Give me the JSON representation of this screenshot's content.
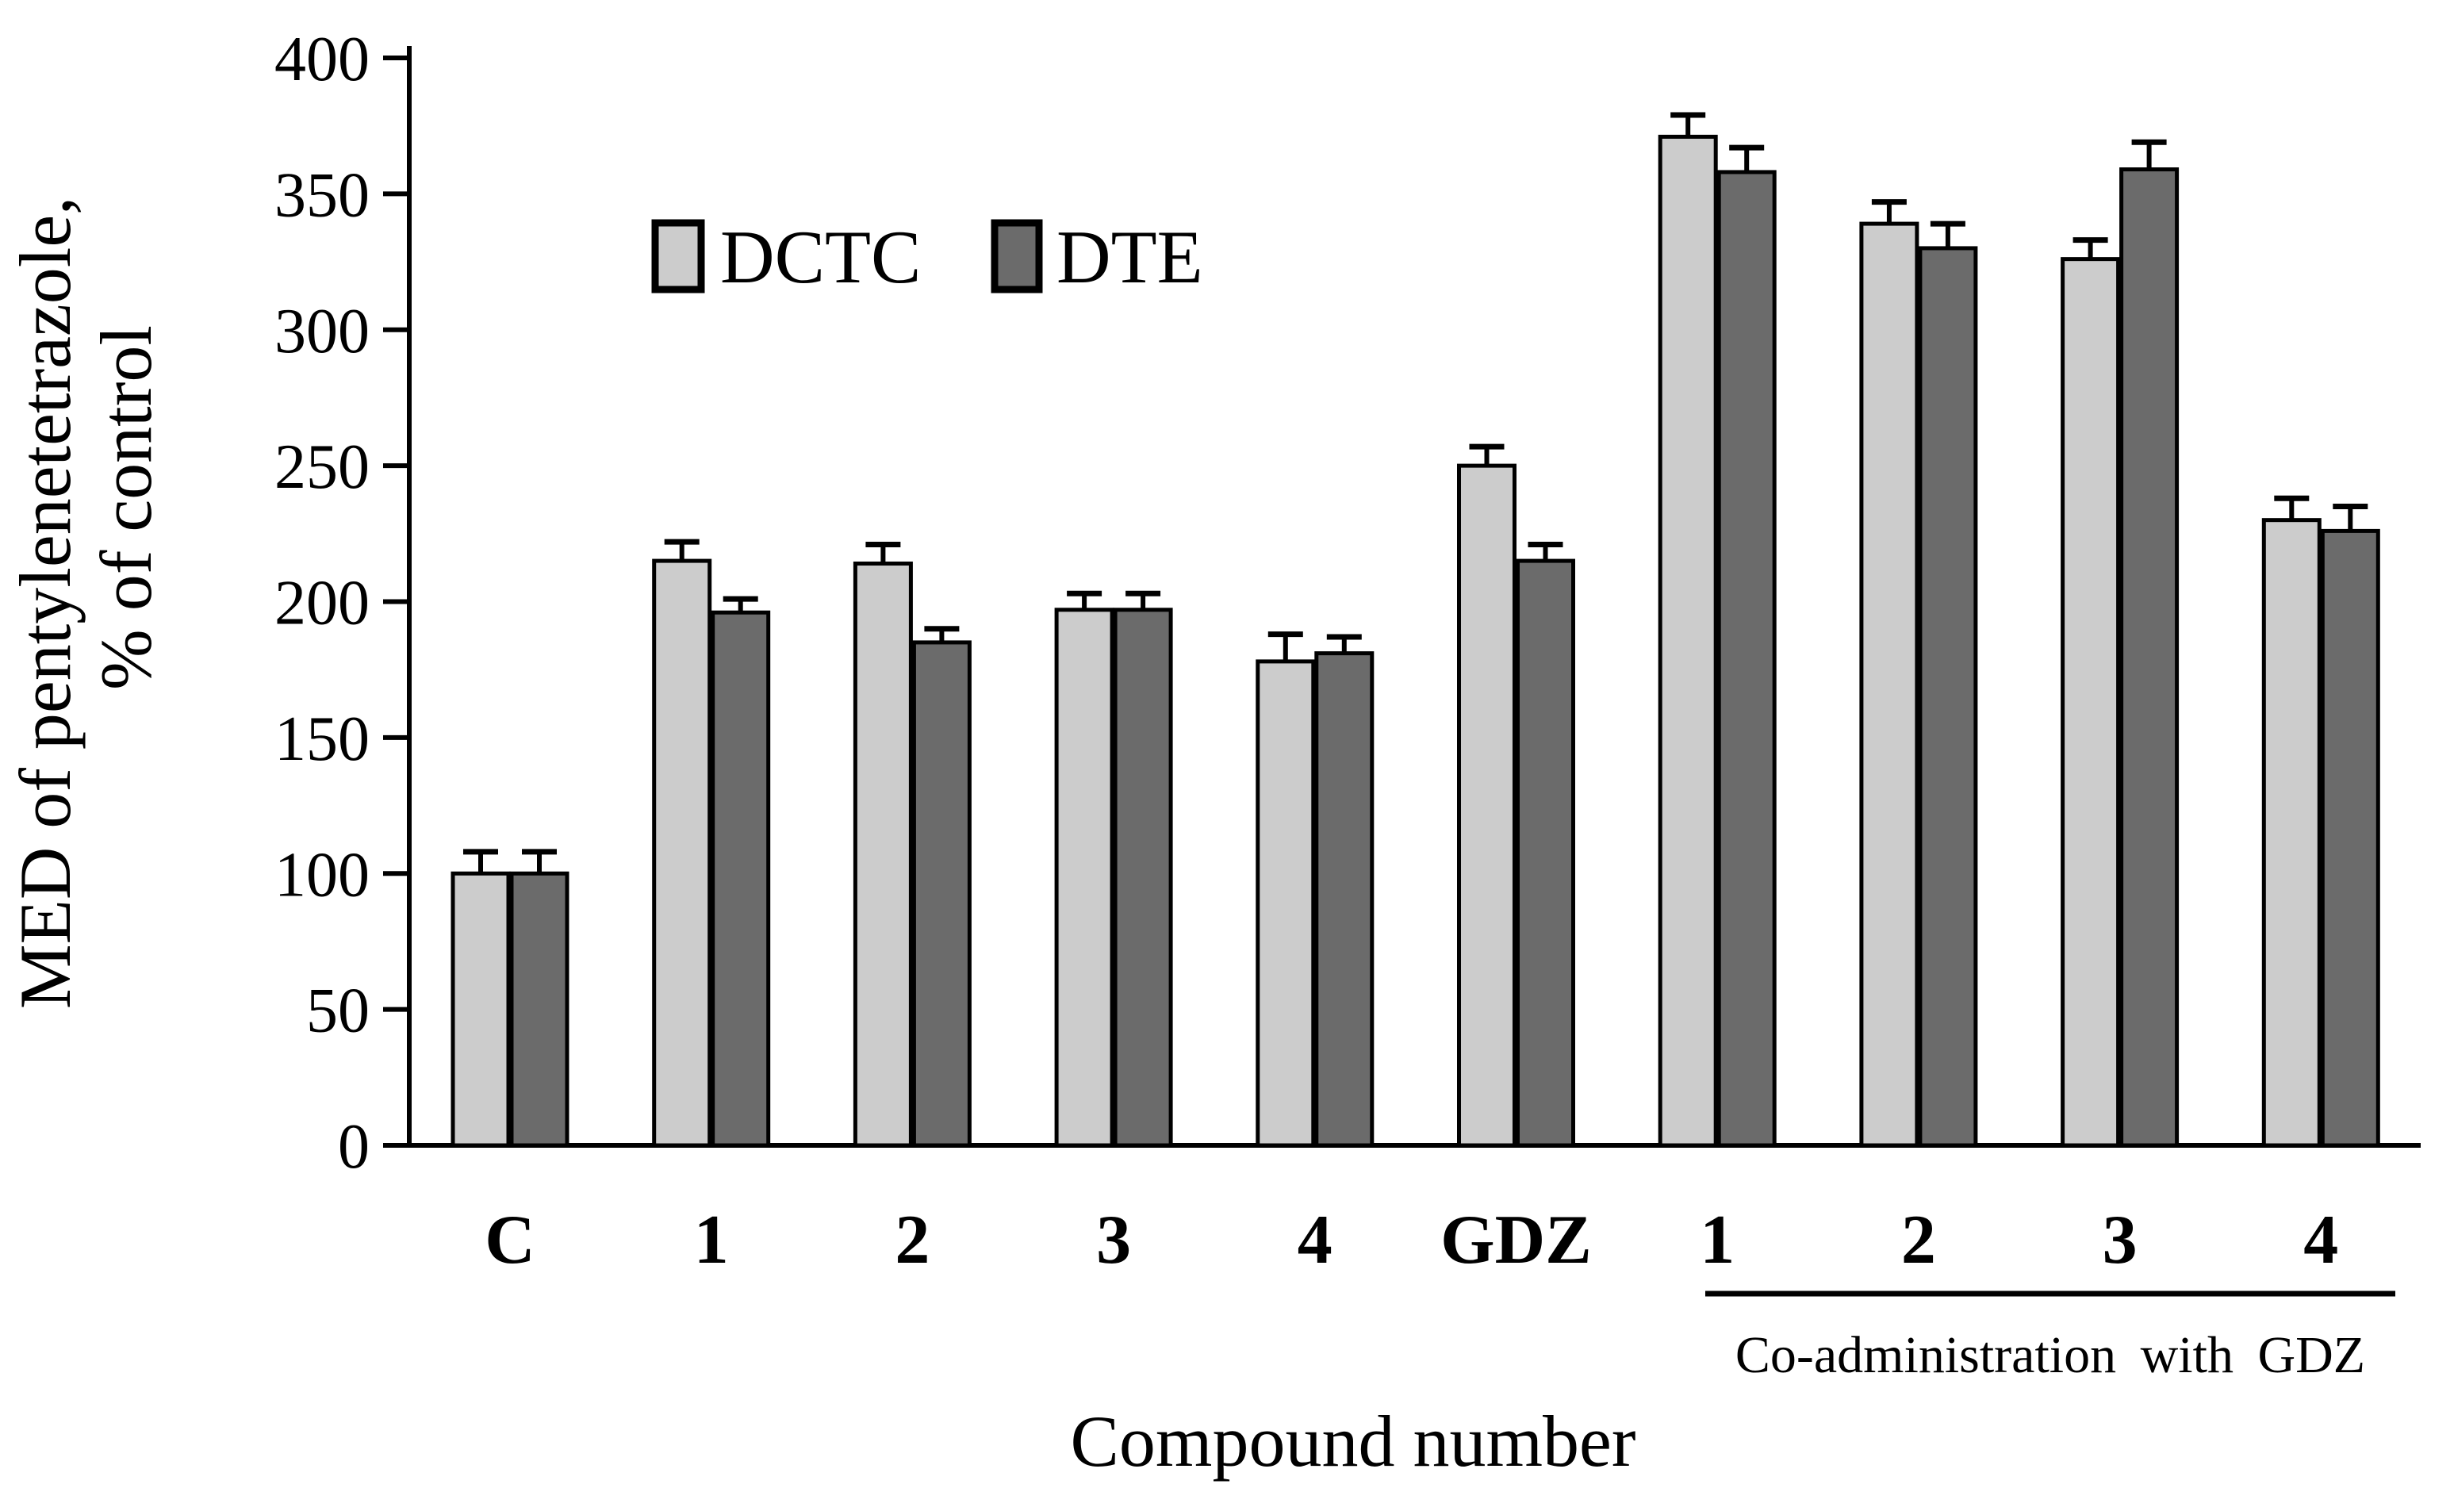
{
  "chart_data": {
    "type": "bar",
    "title": "",
    "categories": [
      "C",
      "1",
      "2",
      "3",
      "4",
      "GDZ",
      "1",
      "2",
      "3",
      "4"
    ],
    "series": [
      {
        "name": "DCTC",
        "color": "#cccccc",
        "values": [
          100,
          215,
          214,
          197,
          178,
          250,
          371,
          339,
          326,
          230
        ],
        "errors": [
          8,
          7,
          7,
          6,
          10,
          7,
          8,
          8,
          7,
          8
        ]
      },
      {
        "name": "DTE",
        "color": "#6b6b6b",
        "values": [
          100,
          196,
          185,
          197,
          181,
          215,
          358,
          330,
          359,
          226
        ],
        "errors": [
          8,
          5,
          5,
          6,
          6,
          6,
          9,
          9,
          10,
          9
        ]
      }
    ],
    "ylabel_line1": "MED of pentylenetetrazole,",
    "ylabel_line2": "% of control",
    "xlabel": "Compound number",
    "ylim": [
      0,
      400
    ],
    "yticks": [
      0,
      50,
      100,
      150,
      200,
      250,
      300,
      350,
      400
    ],
    "grid": false,
    "legend_position": "top-left-inside",
    "error_bars": "upper",
    "bar_outline_color": "#000000",
    "axis_color": "#000000",
    "background": "#ffffff",
    "group_annotation": {
      "label": "Co-administration with GDZ",
      "start_category_index": 6,
      "end_category_index": 9
    }
  }
}
